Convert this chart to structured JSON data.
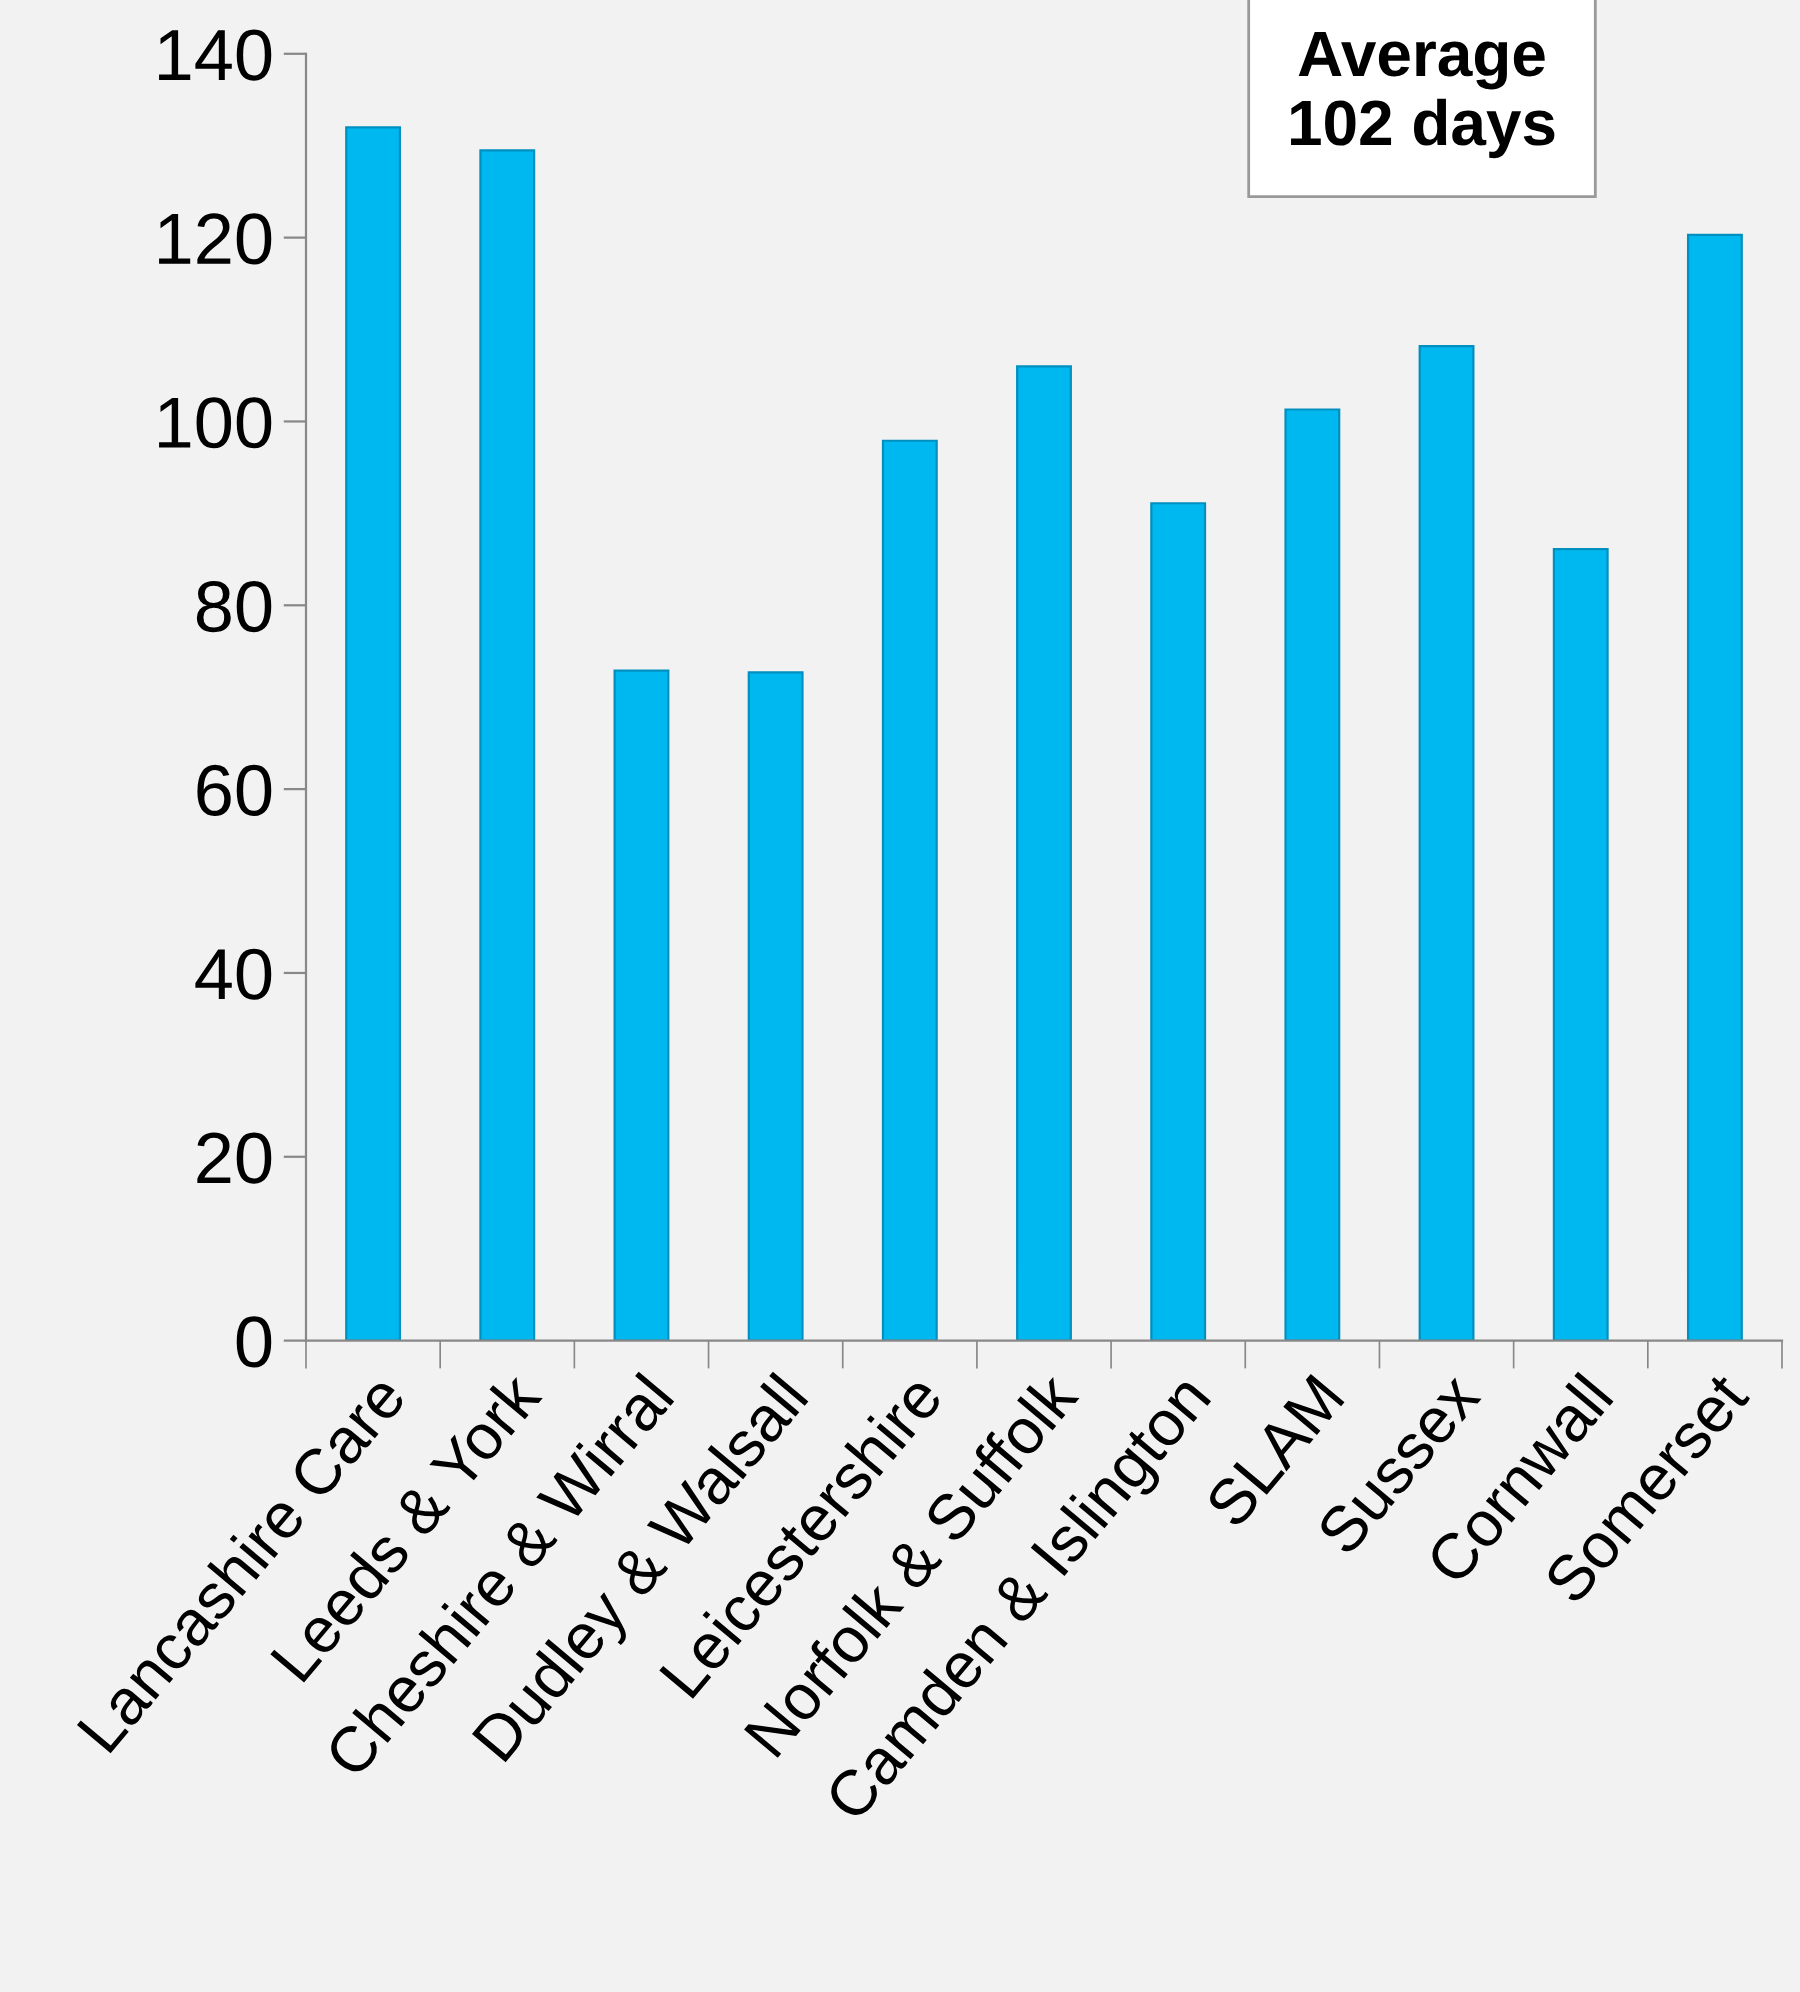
{
  "chart_data": {
    "type": "bar",
    "categories": [
      "Lancashire Care",
      "Leeds & York",
      "Cheshire & Wirral",
      "Dudley & Walsall",
      "Leicestershire",
      "Norfolk & Suffolk",
      "Camden & Islington",
      "SLAM",
      "Sussex",
      "Cornwall",
      "Somerset"
    ],
    "values": [
      132,
      129.5,
      72.9,
      72.7,
      97.9,
      106,
      91.1,
      101.3,
      108.2,
      86.1,
      120.3
    ],
    "color": "#00b8f0",
    "ylim": [
      0,
      140
    ],
    "yticks": [
      0,
      20,
      40,
      60,
      80,
      100,
      120,
      140
    ],
    "grid": false,
    "annotations": [
      "Average\n102 days"
    ]
  }
}
